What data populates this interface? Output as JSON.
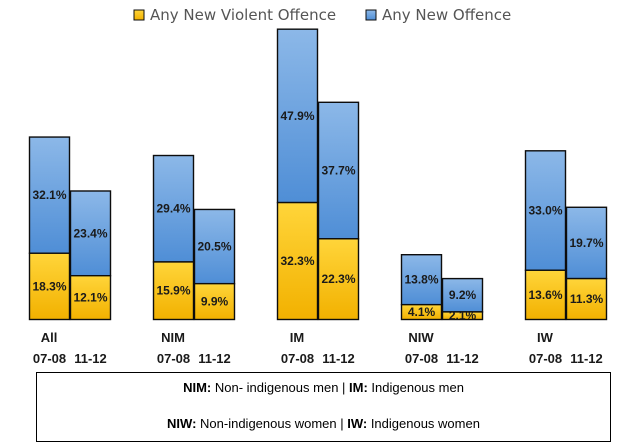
{
  "chart_data": {
    "type": "bar",
    "stacked": true,
    "legend_position": "top",
    "colors": {
      "violent_fill_top": "#FFD53A",
      "violent_fill_bottom": "#F2B100",
      "offence_fill_top": "#8CB8E8",
      "offence_fill_bottom": "#4F8ED6",
      "outline": "#0d0d0d"
    },
    "series": [
      {
        "name": "Any New Violent Offence"
      },
      {
        "name": "Any New Offence"
      }
    ],
    "groups": [
      {
        "label": "All",
        "periods": [
          "07-08",
          "11-12"
        ],
        "violent": [
          18.3,
          12.1
        ],
        "offence": [
          32.1,
          23.4
        ],
        "violent_labels": [
          "18.3%",
          "12.1%"
        ],
        "offence_labels": [
          "32.1%",
          "23.4%"
        ]
      },
      {
        "label": "NIM",
        "periods": [
          "07-08",
          "11-12"
        ],
        "violent": [
          15.9,
          9.9
        ],
        "offence": [
          29.4,
          20.5
        ],
        "violent_labels": [
          "15.9%",
          "9.9%"
        ],
        "offence_labels": [
          "29.4%",
          "20.5%"
        ]
      },
      {
        "label": "IM",
        "periods": [
          "07-08",
          "11-12"
        ],
        "violent": [
          32.3,
          22.3
        ],
        "offence": [
          47.9,
          37.7
        ],
        "violent_labels": [
          "32.3%",
          "22.3%"
        ],
        "offence_labels": [
          "47.9%",
          "37.7%"
        ]
      },
      {
        "label": "NIW",
        "periods": [
          "07-08",
          "11-12"
        ],
        "violent": [
          4.1,
          2.1
        ],
        "offence": [
          13.8,
          9.2
        ],
        "violent_labels": [
          "4.1%",
          "2.1%"
        ],
        "offence_labels": [
          "13.8%",
          "9.2%"
        ]
      },
      {
        "label": "IW",
        "periods": [
          "07-08",
          "11-12"
        ],
        "violent": [
          13.6,
          11.3
        ],
        "offence": [
          33.0,
          19.7
        ],
        "violent_labels": [
          "13.6%",
          "11.3%"
        ],
        "offence_labels": [
          "33.0%",
          "19.7%"
        ]
      }
    ]
  },
  "notes": {
    "line1": {
      "abbr1": "NIM:",
      "text1": " Non- indigenous men | ",
      "abbr2": "IM:",
      "text2": " Indigenous men"
    },
    "line2": {
      "abbr1": "NIW:",
      "text1": " Non-indigenous women | ",
      "abbr2": "IW:",
      "text2": " Indigenous women"
    }
  }
}
